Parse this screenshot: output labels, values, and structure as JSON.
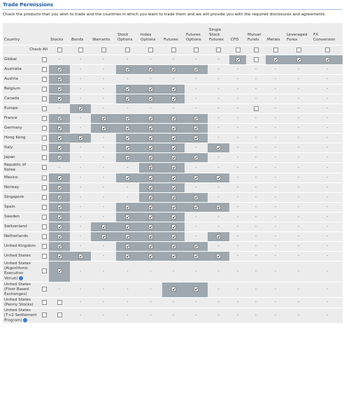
{
  "header": {
    "title": "Trade Permissions",
    "instructions": "Check the products that you wish to trade and the countries in which you want to trade them and we will provide you with the required disclosures and agreements."
  },
  "table": {
    "columns": [
      "Country",
      "Stocks",
      "Bonds",
      "Warrants",
      "Stock Options",
      "Index Options",
      "Futures",
      "Futures Options",
      "Single Stock Futures",
      "CFD",
      "Mutual Funds",
      "Metals",
      "Leveraged Forex",
      "FX Conversion"
    ],
    "rows": [
      {
        "label": "Check All",
        "cells": [
          false,
          false,
          false,
          false,
          false,
          false,
          false,
          false,
          false,
          false,
          false,
          false,
          false
        ]
      },
      {
        "label": "Global",
        "row_checkbox": false,
        "cells": [
          "-",
          "-",
          "-",
          "-",
          "-",
          "-",
          "-",
          "-",
          true,
          false,
          true,
          true,
          true
        ]
      },
      {
        "label": "Australia",
        "row_checkbox": false,
        "cells": [
          true,
          "-",
          "-",
          true,
          true,
          true,
          true,
          "-",
          "-",
          "-",
          "-",
          "-",
          "-"
        ]
      },
      {
        "label": "Austria",
        "row_checkbox": false,
        "cells": [
          true,
          "-",
          "-",
          "-",
          "-",
          "-",
          "-",
          "-",
          "-",
          "-",
          "-",
          "-",
          "-"
        ]
      },
      {
        "label": "Belgium",
        "row_checkbox": false,
        "cells": [
          true,
          "-",
          "-",
          true,
          true,
          true,
          "-",
          "-",
          "-",
          "-",
          "-",
          "-",
          "-"
        ]
      },
      {
        "label": "Canada",
        "row_checkbox": false,
        "cells": [
          true,
          "-",
          "-",
          true,
          true,
          true,
          "-",
          "-",
          "-",
          "-",
          "-",
          "-",
          "-"
        ]
      },
      {
        "label": "Europe",
        "row_checkbox": false,
        "cells": [
          "-",
          true,
          "-",
          "-",
          "-",
          "-",
          "-",
          "-",
          "-",
          false,
          "-",
          "-",
          "-"
        ]
      },
      {
        "label": "France",
        "row_checkbox": false,
        "cells": [
          true,
          "-",
          true,
          true,
          true,
          true,
          true,
          "-",
          "-",
          "-",
          "-",
          "-",
          "-"
        ]
      },
      {
        "label": "Germany",
        "row_checkbox": false,
        "cells": [
          true,
          "-",
          true,
          true,
          true,
          true,
          true,
          "-",
          "-",
          "-",
          "-",
          "-",
          "-"
        ]
      },
      {
        "label": "Hong Kong",
        "row_checkbox": false,
        "cells": [
          true,
          true,
          "-",
          true,
          true,
          true,
          true,
          "-",
          "-",
          "-",
          "-",
          "-",
          "-"
        ]
      },
      {
        "label": "Italy",
        "row_checkbox": false,
        "cells": [
          true,
          "-",
          "-",
          true,
          true,
          true,
          "-",
          true,
          "-",
          "-",
          "-",
          "-",
          "-"
        ]
      },
      {
        "label": "Japan",
        "row_checkbox": false,
        "cells": [
          true,
          "-",
          "-",
          true,
          true,
          true,
          true,
          "-",
          "-",
          "-",
          "-",
          "-",
          "-"
        ]
      },
      {
        "label": "Republic of Korea",
        "row_checkbox": false,
        "cells": [
          "-",
          "-",
          "-",
          "-",
          true,
          true,
          "-",
          "-",
          "-",
          "-",
          "-",
          "-",
          "-"
        ]
      },
      {
        "label": "Mexico",
        "row_checkbox": false,
        "cells": [
          true,
          "-",
          "-",
          true,
          true,
          true,
          true,
          true,
          "-",
          "-",
          "-",
          "-",
          "-"
        ]
      },
      {
        "label": "Norway",
        "row_checkbox": false,
        "cells": [
          true,
          "-",
          "-",
          "-",
          true,
          true,
          "-",
          "-",
          "-",
          "-",
          "-",
          "-",
          "-"
        ]
      },
      {
        "label": "Singapore",
        "row_checkbox": false,
        "cells": [
          true,
          "-",
          "-",
          "-",
          true,
          true,
          true,
          "-",
          "-",
          "-",
          "-",
          "-",
          "-"
        ]
      },
      {
        "label": "Spain",
        "row_checkbox": false,
        "cells": [
          true,
          "-",
          "-",
          true,
          true,
          true,
          true,
          true,
          "-",
          "-",
          "-",
          "-",
          "-"
        ]
      },
      {
        "label": "Sweden",
        "row_checkbox": false,
        "cells": [
          true,
          "-",
          "-",
          true,
          true,
          true,
          "-",
          "-",
          "-",
          "-",
          "-",
          "-",
          "-"
        ]
      },
      {
        "label": "Switzerland",
        "row_checkbox": false,
        "cells": [
          true,
          "-",
          true,
          true,
          true,
          true,
          "-",
          "-",
          "-",
          "-",
          "-",
          "-",
          "-"
        ]
      },
      {
        "label": "Netherlands",
        "row_checkbox": false,
        "cells": [
          true,
          "-",
          true,
          true,
          true,
          true,
          "-",
          true,
          "-",
          "-",
          "-",
          "-",
          "-"
        ]
      },
      {
        "label": "United Kingdom",
        "row_checkbox": false,
        "cells": [
          true,
          "-",
          "-",
          true,
          true,
          true,
          true,
          "-",
          "-",
          "-",
          "-",
          "-",
          "-"
        ]
      },
      {
        "label": "United States",
        "row_checkbox": false,
        "cells": [
          true,
          true,
          "-",
          true,
          true,
          true,
          true,
          true,
          "-",
          "-",
          "-",
          "-",
          "-"
        ]
      },
      {
        "label": "United States (Algorithmic Execution Venue)",
        "row_checkbox": false,
        "info_icon": true,
        "cells": [
          true,
          "-",
          "-",
          "-",
          "-",
          "-",
          "-",
          "-",
          "-",
          "-",
          "-",
          "-",
          "-"
        ]
      },
      {
        "label": "United States (Floor Based Exchanges)",
        "row_checkbox": false,
        "cells": [
          "-",
          "-",
          "-",
          "-",
          "-",
          true,
          true,
          "-",
          "-",
          "-",
          "-",
          "-",
          "-"
        ]
      },
      {
        "label": "United States (Penny Stocks)",
        "row_checkbox": false,
        "cells": [
          false,
          "-",
          "-",
          "-",
          "-",
          "-",
          "-",
          "-",
          "-",
          "-",
          "-",
          "-",
          "-"
        ]
      },
      {
        "label": "United States (T+2 Settlement Program)",
        "row_checkbox": false,
        "info_icon": true,
        "cells": [
          false,
          "-",
          "-",
          "-",
          "-",
          "-",
          "-",
          "-",
          "-",
          "-",
          "-",
          "-",
          "-"
        ]
      }
    ]
  }
}
